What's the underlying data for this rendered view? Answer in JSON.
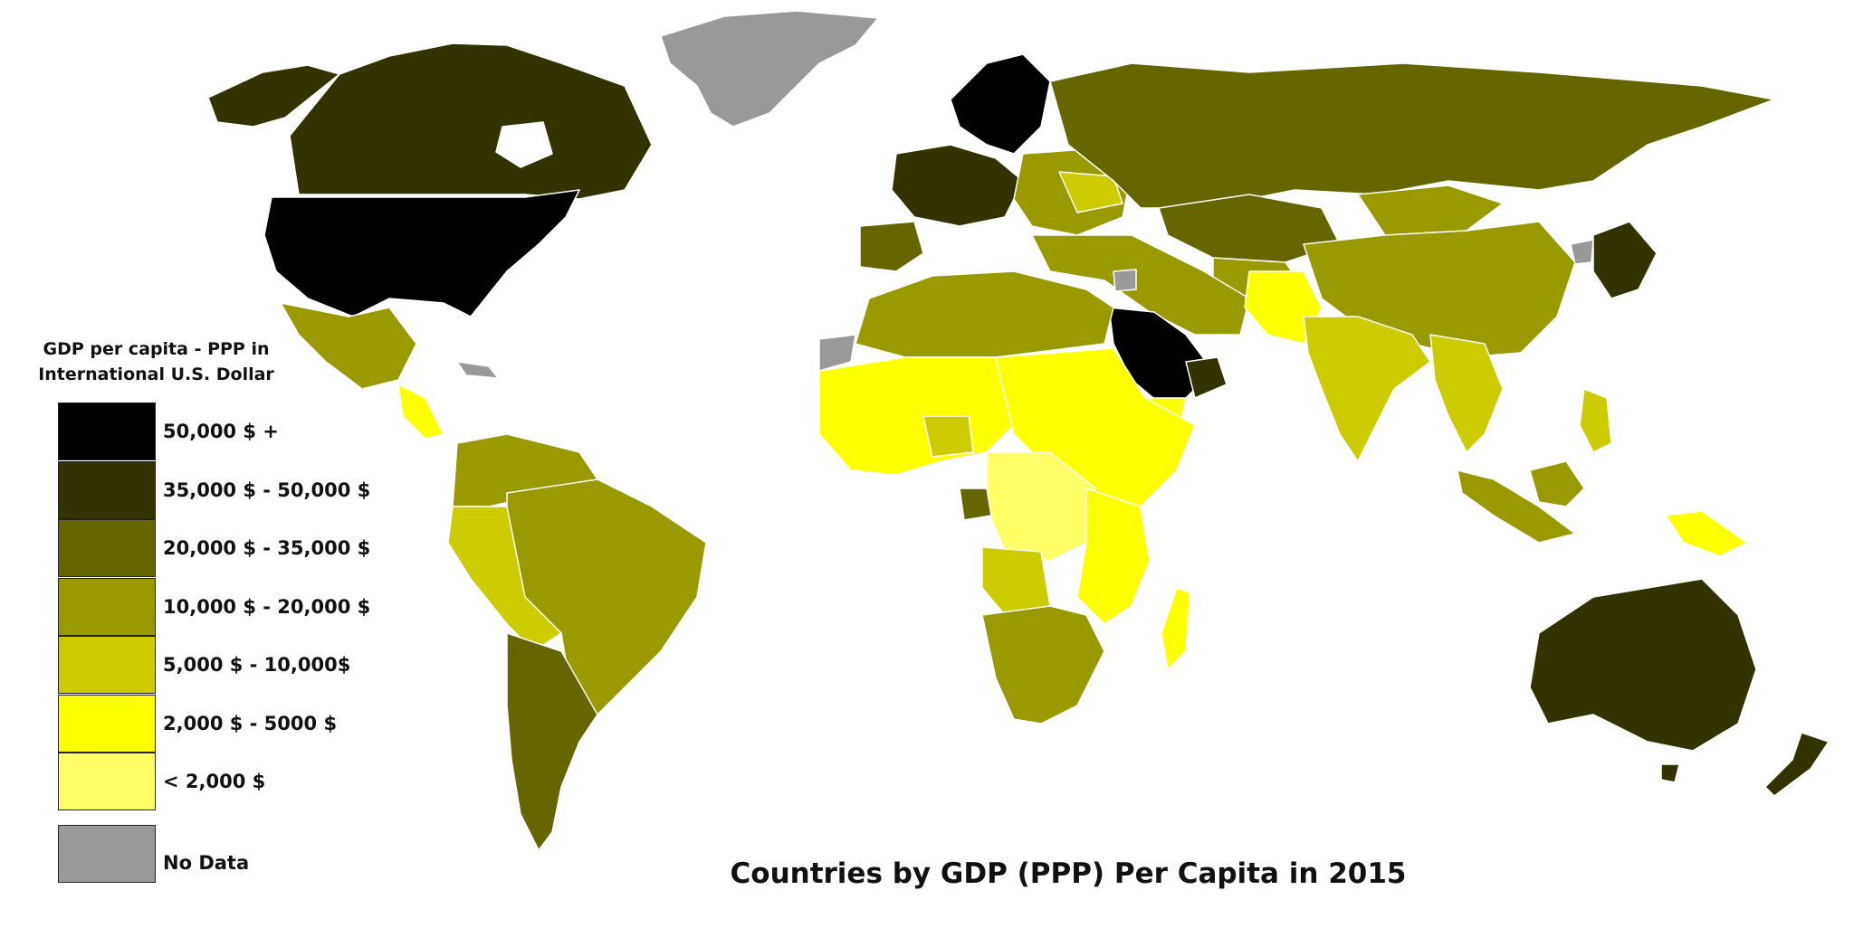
{
  "title": "Countries by GDP (PPP) Per Capita in 2015",
  "legend": {
    "title_line1": "GDP per capita - PPP in",
    "title_line2": "International U.S. Dollar",
    "classes": [
      {
        "label": "50,000 $ +",
        "color": "#000000"
      },
      {
        "label": "35,000 $ - 50,000 $",
        "color": "#333300"
      },
      {
        "label": "20,000 $ - 35,000 $",
        "color": "#666600"
      },
      {
        "label": "10,000 $ - 20,000 $",
        "color": "#999900"
      },
      {
        "label": "5,000 $ - 10,000$",
        "color": "#cccc00"
      },
      {
        "label": "2,000 $ - 5000 $",
        "color": "#ffff00"
      },
      {
        "label": "< 2,000 $",
        "color": "#ffff66"
      }
    ],
    "no_data": {
      "label": "No Data",
      "color": "#999999"
    }
  },
  "ocean_color": "#ffffff",
  "border_color": "#ffffff"
}
